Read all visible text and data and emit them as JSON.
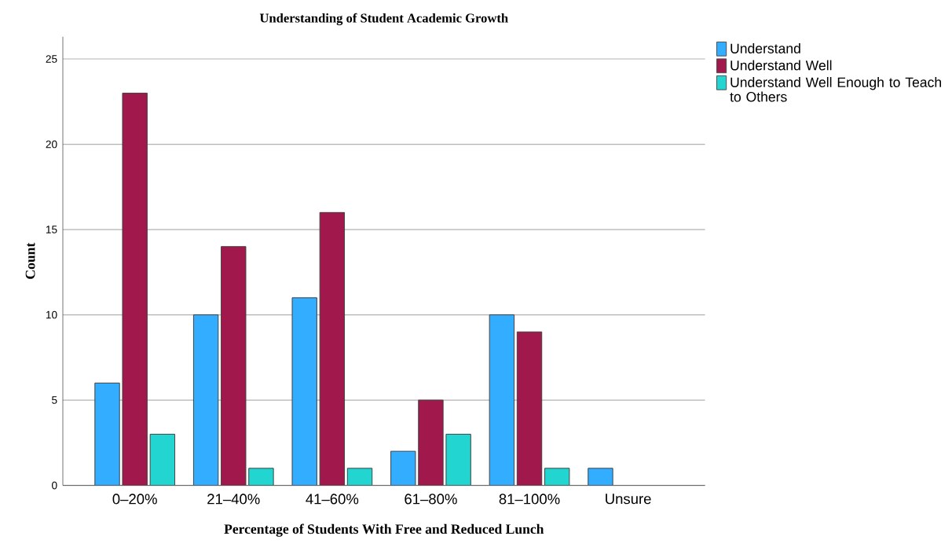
{
  "chart_data": {
    "type": "bar",
    "title": "Understanding of Student Academic Growth",
    "xlabel": "Percentage of Students With Free and Reduced Lunch",
    "ylabel": "Count",
    "categories": [
      "0–20%",
      "21–40%",
      "41–60%",
      "61–80%",
      "81–100%",
      "Unsure"
    ],
    "series": [
      {
        "name": "Understand",
        "color": "#33adff",
        "values": [
          6,
          10,
          11,
          2,
          10,
          1
        ]
      },
      {
        "name": "Understand Well",
        "color": "#a0184c",
        "values": [
          23,
          14,
          16,
          5,
          9,
          null
        ]
      },
      {
        "name": "Understand Well Enough to Teach to Others",
        "color": "#23d5d0",
        "values": [
          3,
          1,
          1,
          3,
          1,
          null
        ]
      }
    ],
    "ylim": [
      0,
      26.3
    ],
    "yticks": [
      0,
      5,
      10,
      15,
      20,
      25
    ],
    "grid": "y",
    "legend": "top right"
  }
}
